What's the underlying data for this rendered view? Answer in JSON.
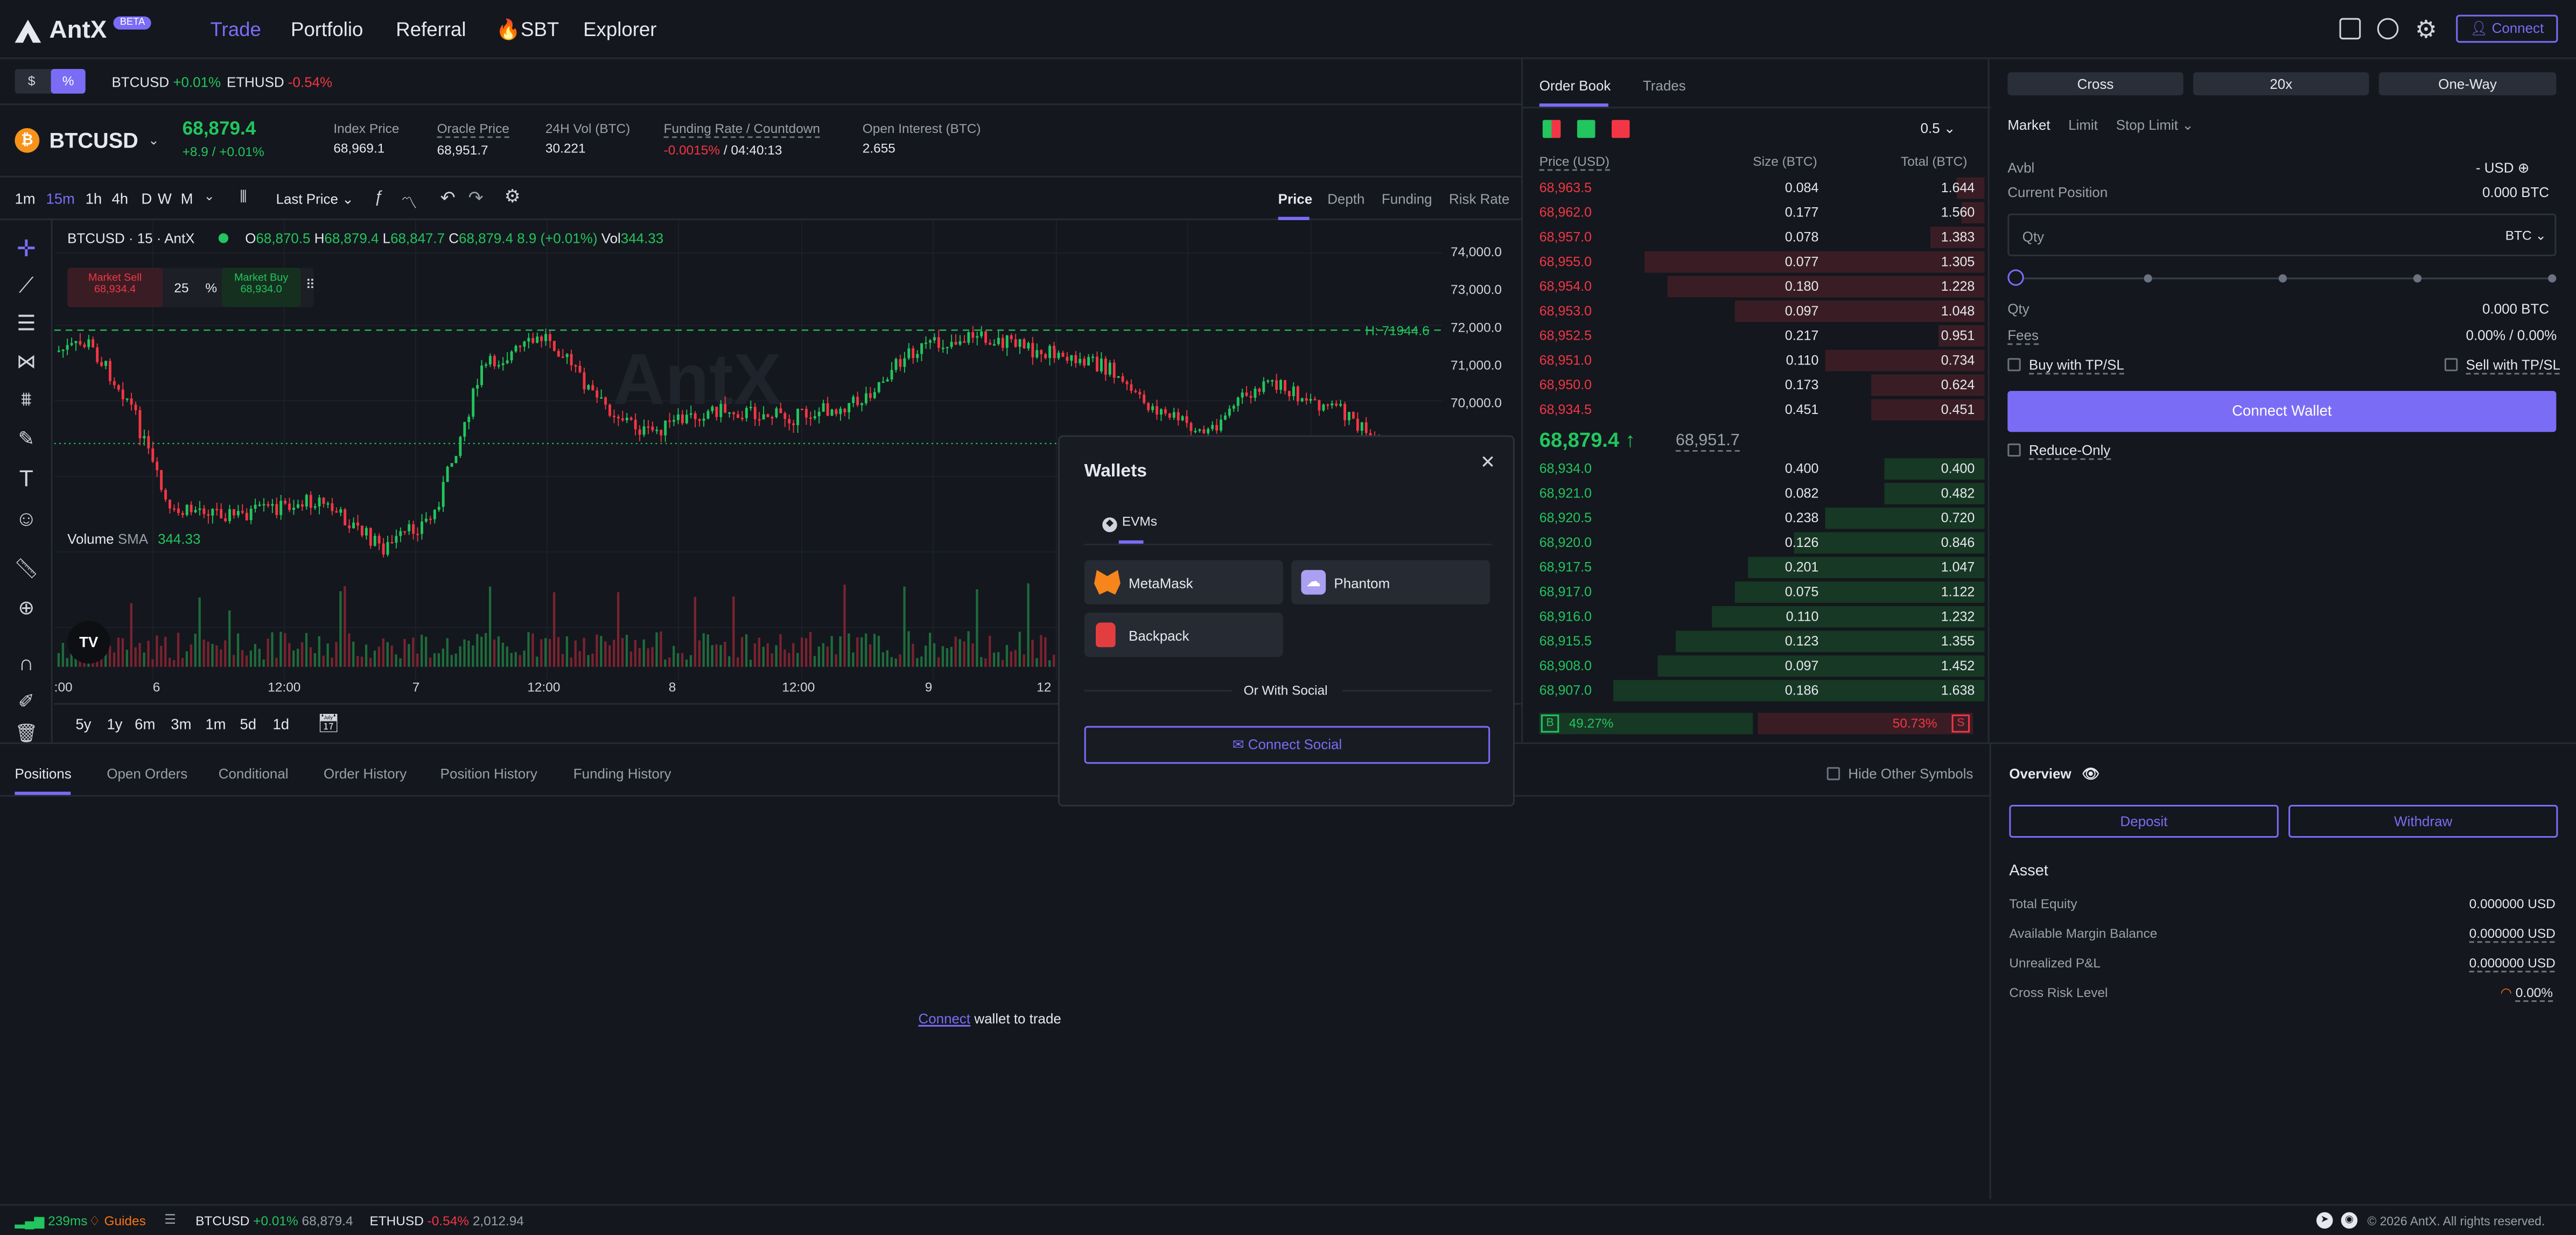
{
  "nav": {
    "brand": "AntX",
    "beta": "BETA",
    "items": [
      "Trade",
      "Portfolio",
      "Referral",
      "SBT",
      "Explorer"
    ],
    "connect": "Connect"
  },
  "ticker_bar": {
    "units": [
      "$",
      "%"
    ],
    "items": [
      {
        "sym": "BTCUSD",
        "chg": "+0.01%"
      },
      {
        "sym": "ETHUSD",
        "chg": "-0.54%"
      }
    ]
  },
  "market": {
    "symbol": "BTCUSD",
    "price": "68,879.4",
    "change": "+8.9 / +0.01%",
    "stats": [
      {
        "label": "Index Price",
        "value": "68,969.1"
      },
      {
        "label": "Oracle Price",
        "value": "68,951.7"
      },
      {
        "label": "24H Vol (BTC)",
        "value": "30.221"
      },
      {
        "label": "Funding Rate / Countdown",
        "value_red": "-0.0015%",
        "value": " / 04:40:13"
      },
      {
        "label": "Open Interest (BTC)",
        "value": "2.655"
      }
    ]
  },
  "chart_toolbar": {
    "intervals": [
      "1m",
      "15m",
      "1h",
      "4h",
      "D",
      "W",
      "M"
    ],
    "price_type": "Last Price",
    "tabs": [
      "Price",
      "Depth",
      "Funding",
      "Risk Rate"
    ]
  },
  "chart": {
    "legend_title": "BTCUSD · 15 · AntX",
    "ohlc": {
      "o": "68,870.5",
      "h": "68,879.4",
      "l": "68,847.7",
      "c": "68,879.4",
      "chg": "8.9 (+0.01%)",
      "vol": "344.33"
    },
    "market_sell": "Market Sell",
    "sell_price": "68,934.4",
    "qty": "25",
    "pct": "%",
    "market_buy": "Market Buy",
    "buy_price": "68,934.0",
    "high_label": "H: 71944.6",
    "y_ticks": [
      "74,000.0",
      "73,000.0",
      "72,000.0",
      "71,000.0",
      "70,000.0"
    ],
    "x_ticks": [
      ":00",
      "6",
      "12:00",
      "7",
      "12:00",
      "8",
      "12:00",
      "9",
      "12"
    ],
    "volume_label": "Volume",
    "sma_label": "SMA",
    "volume_value": "344.33",
    "ranges": [
      "5y",
      "1y",
      "6m",
      "3m",
      "1m",
      "5d",
      "1d"
    ],
    "watermark": "AntX"
  },
  "orderbook": {
    "tabs": [
      "Order Book",
      "Trades"
    ],
    "step": "0.5",
    "headers": [
      "Price (USD)",
      "Size (BTC)",
      "Total (BTC)"
    ],
    "asks": [
      [
        "68,963.5",
        "0.084",
        "1.644",
        0.06
      ],
      [
        "68,962.0",
        "0.177",
        "1.560",
        0.05
      ],
      [
        "68,957.0",
        "0.078",
        "1.383",
        0.12
      ],
      [
        "68,955.0",
        "0.077",
        "1.305",
        0.75
      ],
      [
        "68,954.0",
        "0.180",
        "1.228",
        0.7
      ],
      [
        "68,953.0",
        "0.097",
        "1.048",
        0.55
      ],
      [
        "68,952.5",
        "0.217",
        "0.951",
        0.1
      ],
      [
        "68,951.0",
        "0.110",
        "0.734",
        0.35
      ],
      [
        "68,950.0",
        "0.173",
        "0.624",
        0.25
      ],
      [
        "68,934.5",
        "0.451",
        "0.451",
        0.25
      ]
    ],
    "mid": "68,879.4",
    "mark": "68,951.7",
    "bids": [
      [
        "68,934.0",
        "0.400",
        "0.400",
        0.22
      ],
      [
        "68,921.0",
        "0.082",
        "0.482",
        0.22
      ],
      [
        "68,920.5",
        "0.238",
        "0.720",
        0.35
      ],
      [
        "68,920.0",
        "0.126",
        "0.846",
        0.42
      ],
      [
        "68,917.5",
        "0.201",
        "1.047",
        0.52
      ],
      [
        "68,917.0",
        "0.075",
        "1.122",
        0.55
      ],
      [
        "68,916.0",
        "0.110",
        "1.232",
        0.6
      ],
      [
        "68,915.5",
        "0.123",
        "1.355",
        0.68
      ],
      [
        "68,908.0",
        "0.097",
        "1.452",
        0.72
      ],
      [
        "68,907.0",
        "0.186",
        "1.638",
        0.82
      ]
    ],
    "buy_pct": "49.27%",
    "sell_pct": "50.73%",
    "b": "B",
    "s": "S"
  },
  "order": {
    "margin_mode": "Cross",
    "leverage": "20x",
    "position_mode": "One-Way",
    "types": [
      "Market",
      "Limit",
      "Stop Limit"
    ],
    "avbl_label": "Avbl",
    "avbl_value": "- USD",
    "cur_pos_label": "Current Position",
    "cur_pos_value": "0.000 BTC",
    "qty_placeholder": "Qty",
    "qty_unit": "BTC",
    "qty_label": "Qty",
    "qty_value": "0.000 BTC",
    "fees_label": "Fees",
    "fees_value": "0.00% / 0.00%",
    "buy_tpsl": "Buy with TP/SL",
    "sell_tpsl": "Sell with TP/SL",
    "connect_wallet": "Connect Wallet",
    "reduce_only": "Reduce-Only"
  },
  "overview": {
    "title": "Overview",
    "deposit": "Deposit",
    "withdraw": "Withdraw",
    "asset_title": "Asset",
    "rows": [
      {
        "label": "Total Equity",
        "value": "0.000000 USD"
      },
      {
        "label": "Available Margin Balance",
        "value": "0.000000 USD"
      },
      {
        "label": "Unrealized P&L",
        "value": "0.000000 USD"
      },
      {
        "label": "Cross Risk Level",
        "value": "0.00%"
      }
    ]
  },
  "positions": {
    "tabs": [
      "Positions",
      "Open Orders",
      "Conditional",
      "Order History",
      "Position History",
      "Funding History"
    ],
    "hide_other": "Hide Other Symbols",
    "empty_link": "Connect",
    "empty_text": " wallet to trade"
  },
  "wallets": {
    "title": "Wallets",
    "tab": "EVMs",
    "items": [
      "MetaMask",
      "Phantom",
      "Backpack"
    ],
    "or_social": "Or With Social",
    "connect_social": "Connect Social"
  },
  "footer": {
    "latency": "239ms",
    "guides": "Guides",
    "tickers": [
      {
        "sym": "BTCUSD",
        "chg": "+0.01%",
        "price": "68,879.4"
      },
      {
        "sym": "ETHUSD",
        "chg": "-0.54%",
        "price": "2,012.94"
      }
    ],
    "copyright": "© 2026 AntX. All rights reserved."
  },
  "colors": {
    "accent": "#7b6cf6",
    "up": "#22c55e",
    "down": "#f23645",
    "bg": "#14171d"
  }
}
